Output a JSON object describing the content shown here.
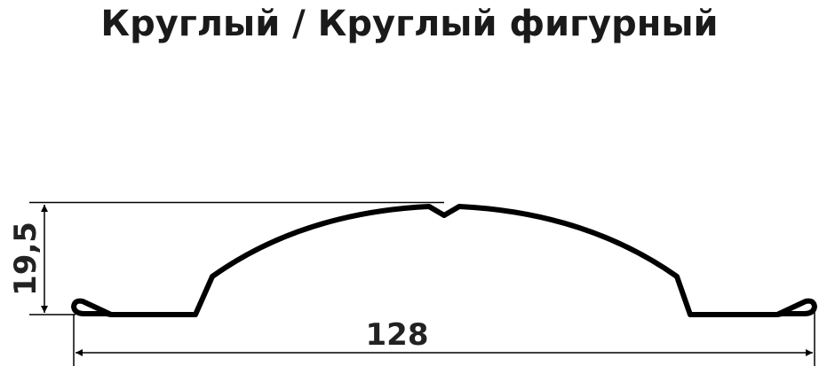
{
  "title": "Круглый / Круглый фигурный",
  "dimensions": {
    "height": "19,5",
    "width": "128"
  },
  "colors": {
    "profile": "#000000",
    "text": "#1a1a1a"
  }
}
